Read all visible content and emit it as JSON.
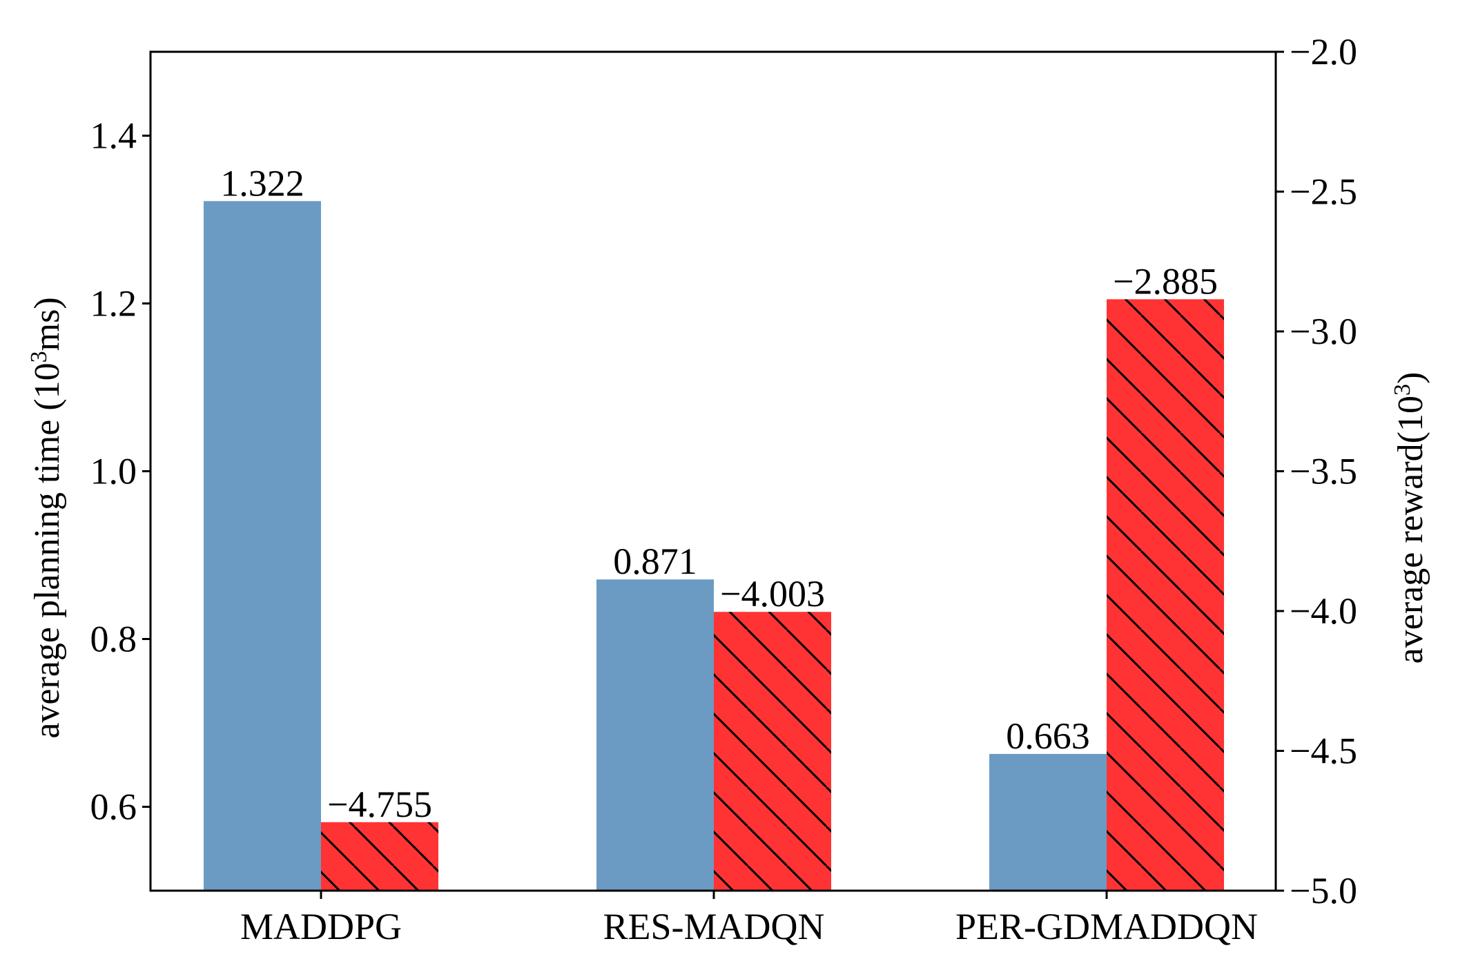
{
  "chart_data": {
    "type": "bar",
    "title": "",
    "categories": [
      "MADDPG",
      "RES-MADQN",
      "PER-GDMADDQN"
    ],
    "series": [
      {
        "axis": "left",
        "values": [
          1.322,
          0.871,
          0.663
        ],
        "labels": [
          "1.322",
          "0.871",
          "0.663"
        ],
        "color": "#6b9bc3",
        "hatch": false
      },
      {
        "axis": "right",
        "values": [
          -4.755,
          -4.003,
          -2.885
        ],
        "labels": [
          "−4.755",
          "−4.003",
          "−2.885"
        ],
        "color": "#ff3333",
        "hatch": true
      }
    ],
    "y_left": {
      "label_main": "average planning time (10",
      "label_sup": "3",
      "label_end": "ms)",
      "ylim": [
        0.5,
        1.5
      ],
      "ticks": [
        0.6,
        0.8,
        1.0,
        1.2,
        1.4
      ],
      "tick_labels": [
        "0.6",
        "0.8",
        "1.0",
        "1.2",
        "1.4"
      ]
    },
    "y_right": {
      "label_main": "average reward(10",
      "label_sup": "3",
      "label_end": ")",
      "ylim": [
        -5.0,
        -2.0
      ],
      "ticks": [
        -5.0,
        -4.5,
        -4.0,
        -3.5,
        -3.0,
        -2.5,
        -2.0
      ],
      "tick_labels": [
        "−5.0",
        "−4.5",
        "−4.0",
        "−3.5",
        "−3.0",
        "−2.5",
        "−2.0"
      ]
    },
    "grid": false,
    "legend": "none"
  }
}
